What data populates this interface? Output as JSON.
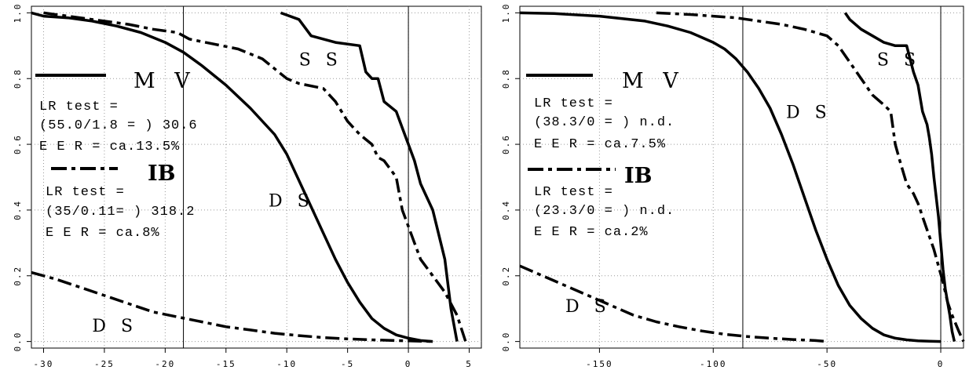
{
  "chart_data": [
    {
      "type": "line",
      "xlim": [
        -31,
        6
      ],
      "ylim": [
        -0.02,
        1.02
      ],
      "x_ticks": [
        -30,
        -25,
        -20,
        -15,
        -10,
        -5,
        0,
        5
      ],
      "x_tick_labels": [
        "-30",
        "-25",
        "-20",
        "-15",
        "-10",
        "-5",
        "0",
        "5"
      ],
      "y_ticks": [
        0.0,
        0.2,
        0.4,
        0.6,
        0.8,
        1.0
      ],
      "y_tick_labels": [
        "0.0",
        "0.2",
        "0.4",
        "0.6",
        "0.8",
        "1.0"
      ],
      "threshold_lines": [
        -18.5,
        0
      ],
      "grid": true,
      "legend": {
        "mv_label": "M V",
        "mv_lr_line1": "LR test =",
        "mv_lr_line2": "(55.0/1.8 = ) 30.6",
        "mv_eer": "E E R  =  ca.13.5%",
        "ib_label": "IB",
        "ib_lr_line1": "LR test =",
        "ib_lr_line2": "(35/0.11= ) 318.2",
        "ib_eer": "E E R  =  ca.8%"
      },
      "curve_labels": [
        {
          "text": "S S",
          "at": [
            -9,
            0.84
          ]
        },
        {
          "text": "D S",
          "at": [
            -11.5,
            0.41
          ]
        },
        {
          "text": "D S",
          "at": [
            -26,
            0.03
          ]
        }
      ],
      "series": [
        {
          "style": "solid",
          "x": [
            -31,
            -30,
            -28,
            -26,
            -24,
            -22,
            -20,
            -18.5,
            -17,
            -15,
            -13,
            -11,
            -10,
            -9,
            -8,
            -7,
            -6,
            -5,
            -4,
            -3,
            -2,
            -1,
            0,
            1,
            2
          ],
          "y": [
            1.0,
            0.99,
            0.985,
            0.975,
            0.96,
            0.94,
            0.91,
            0.88,
            0.84,
            0.78,
            0.71,
            0.63,
            0.57,
            0.49,
            0.41,
            0.33,
            0.25,
            0.18,
            0.12,
            0.07,
            0.04,
            0.02,
            0.01,
            0.003,
            0.0
          ]
        },
        {
          "style": "solid",
          "x": [
            -10.5,
            -9,
            -8,
            -6,
            -4,
            -3.5,
            -3,
            -2.5,
            -2,
            -1,
            -0.5,
            0,
            0.5,
            1,
            2,
            3,
            3.5,
            4
          ],
          "y": [
            1.0,
            0.98,
            0.93,
            0.91,
            0.9,
            0.82,
            0.8,
            0.8,
            0.73,
            0.7,
            0.65,
            0.6,
            0.55,
            0.48,
            0.4,
            0.25,
            0.1,
            0.0
          ]
        },
        {
          "style": "dashdot",
          "x": [
            -30,
            -28,
            -26,
            -23,
            -21,
            -19,
            -18,
            -16,
            -14,
            -12,
            -11,
            -10,
            -9,
            -7,
            -6,
            -5,
            -4,
            -3,
            -2.5,
            -2,
            -1,
            -0.5,
            0,
            0.5,
            1,
            2,
            3,
            4,
            4.7
          ],
          "y": [
            1.0,
            0.99,
            0.98,
            0.965,
            0.95,
            0.94,
            0.92,
            0.905,
            0.89,
            0.86,
            0.83,
            0.8,
            0.785,
            0.77,
            0.73,
            0.67,
            0.63,
            0.6,
            0.56,
            0.55,
            0.5,
            0.4,
            0.35,
            0.3,
            0.25,
            0.2,
            0.15,
            0.08,
            0.0
          ]
        },
        {
          "style": "dashdot",
          "x": [
            -31,
            -29,
            -27,
            -25,
            -23,
            -21,
            -19,
            -17,
            -15,
            -13,
            -11,
            -9,
            -7,
            -5,
            -3,
            -1,
            1,
            2
          ],
          "y": [
            0.21,
            0.19,
            0.165,
            0.14,
            0.115,
            0.09,
            0.075,
            0.06,
            0.045,
            0.035,
            0.025,
            0.018,
            0.012,
            0.008,
            0.005,
            0.003,
            0.001,
            0.0
          ]
        }
      ]
    },
    {
      "type": "line",
      "xlim": [
        -185,
        10
      ],
      "ylim": [
        -0.02,
        1.02
      ],
      "x_ticks": [
        -150,
        -100,
        -50,
        0
      ],
      "x_tick_labels": [
        "-150",
        "-100",
        "-50",
        "0"
      ],
      "y_ticks": [
        0.0,
        0.2,
        0.4,
        0.6,
        0.8,
        1.0
      ],
      "y_tick_labels": [
        "0.0",
        "0.2",
        "0.4",
        "0.6",
        "0.8",
        "1.0"
      ],
      "threshold_lines": [
        -87,
        0
      ],
      "grid": true,
      "legend": {
        "mv_label": "M V",
        "mv_lr_line1": "LR test =",
        "mv_lr_line2": "(38.3/0 = ) n.d.",
        "mv_eer": "E E R  =  ca.7.5%",
        "ib_label": "IB",
        "ib_lr_line1": "LR test =",
        "ib_lr_line2": "(23.3/0 = ) n.d.",
        "ib_eer": "E E R  =  ca.2%"
      },
      "curve_labels": [
        {
          "text": "S S",
          "at": [
            -28,
            0.84
          ]
        },
        {
          "text": "D S",
          "at": [
            -68,
            0.68
          ]
        },
        {
          "text": "D S",
          "at": [
            -165,
            0.09
          ]
        }
      ],
      "series": [
        {
          "style": "solid",
          "x": [
            -185,
            -170,
            -150,
            -130,
            -120,
            -110,
            -100,
            -95,
            -90,
            -85,
            -80,
            -75,
            -70,
            -65,
            -60,
            -55,
            -50,
            -45,
            -40,
            -35,
            -30,
            -25,
            -20,
            -15,
            -10,
            -5,
            0
          ],
          "y": [
            1.0,
            0.998,
            0.99,
            0.975,
            0.96,
            0.94,
            0.91,
            0.89,
            0.86,
            0.82,
            0.77,
            0.71,
            0.63,
            0.54,
            0.44,
            0.34,
            0.25,
            0.17,
            0.11,
            0.07,
            0.04,
            0.02,
            0.01,
            0.005,
            0.002,
            0.001,
            0.0
          ]
        },
        {
          "style": "solid",
          "x": [
            -42,
            -40,
            -35,
            -30,
            -25,
            -20,
            -15,
            -12,
            -10,
            -8,
            -6,
            -5,
            -4,
            -3,
            -2,
            -1,
            0,
            1,
            2,
            3,
            4,
            5,
            6
          ],
          "y": [
            1.0,
            0.98,
            0.95,
            0.93,
            0.91,
            0.9,
            0.9,
            0.82,
            0.78,
            0.7,
            0.66,
            0.62,
            0.57,
            0.5,
            0.44,
            0.38,
            0.3,
            0.22,
            0.16,
            0.12,
            0.08,
            0.03,
            0.0
          ]
        },
        {
          "style": "dashdot",
          "x": [
            -125,
            -110,
            -100,
            -90,
            -85,
            -80,
            -70,
            -60,
            -50,
            -45,
            -40,
            -35,
            -30,
            -25,
            -22,
            -20,
            -18,
            -15,
            -12,
            -10,
            -8,
            -5,
            -3,
            -1,
            1,
            3,
            5,
            8,
            10
          ],
          "y": [
            1.0,
            0.995,
            0.99,
            0.985,
            0.98,
            0.975,
            0.965,
            0.95,
            0.93,
            0.9,
            0.85,
            0.8,
            0.75,
            0.72,
            0.7,
            0.6,
            0.55,
            0.48,
            0.45,
            0.42,
            0.38,
            0.32,
            0.28,
            0.23,
            0.18,
            0.12,
            0.08,
            0.03,
            0.0
          ]
        },
        {
          "style": "dashdot",
          "x": [
            -185,
            -175,
            -165,
            -155,
            -145,
            -135,
            -125,
            -115,
            -105,
            -95,
            -85,
            -75,
            -65,
            -55,
            -50
          ],
          "y": [
            0.23,
            0.2,
            0.17,
            0.14,
            0.11,
            0.08,
            0.06,
            0.045,
            0.032,
            0.022,
            0.015,
            0.01,
            0.006,
            0.003,
            0.0
          ]
        }
      ]
    }
  ]
}
